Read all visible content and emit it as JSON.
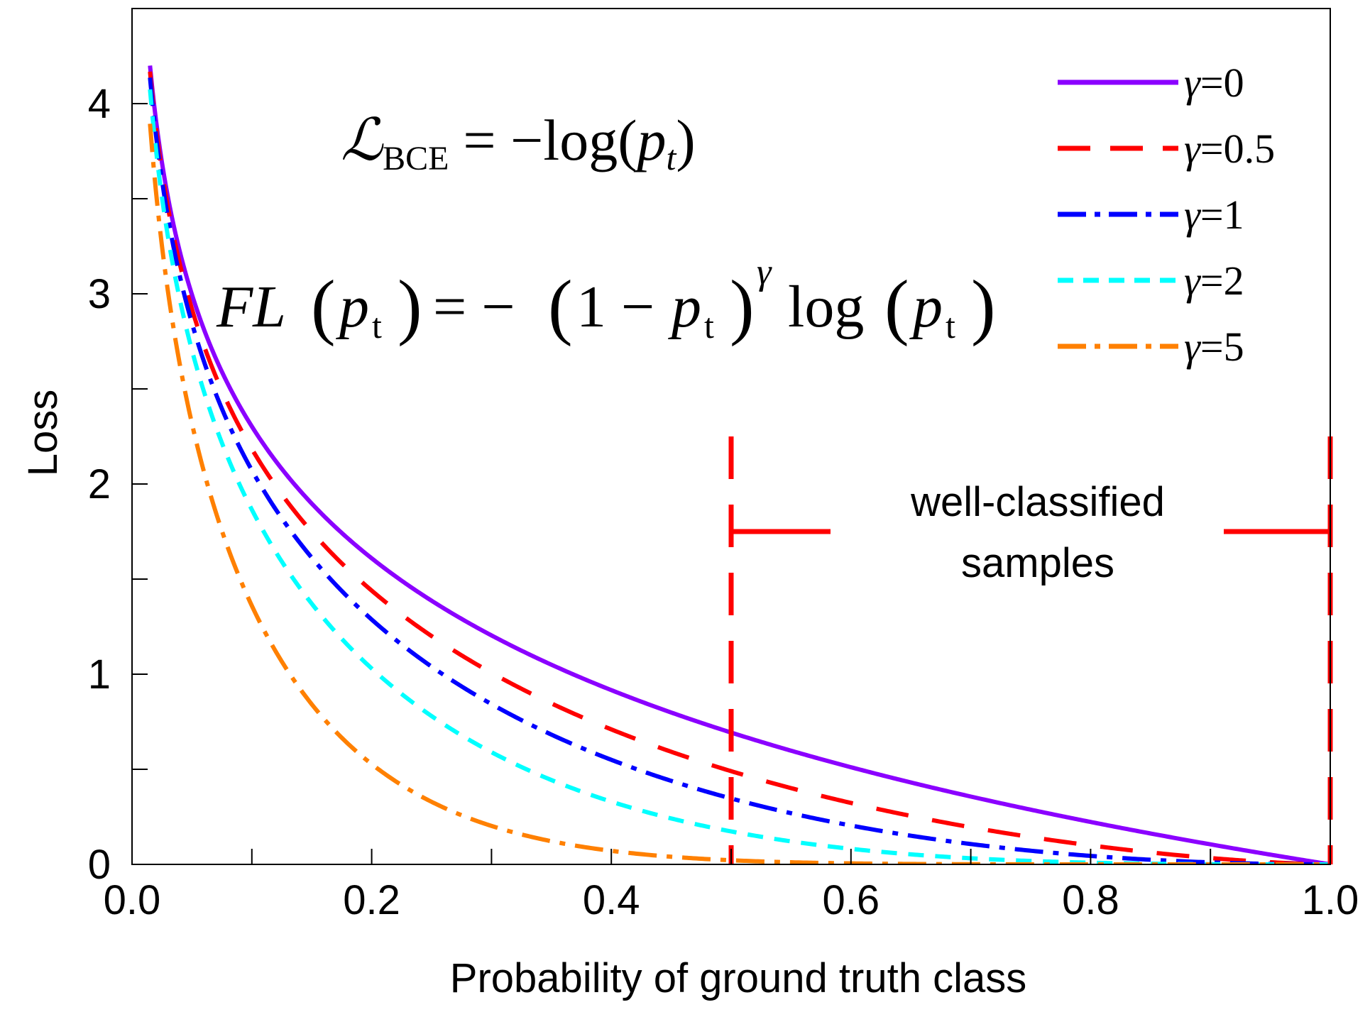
{
  "chart_data": {
    "type": "line",
    "xlabel": "Probability of ground truth class",
    "ylabel": "Loss",
    "xlim": [
      0.0,
      1.0
    ],
    "ylim": [
      0,
      4.5
    ],
    "x_ticks": [
      0.0,
      0.2,
      0.4,
      0.6,
      0.8,
      1.0
    ],
    "x_tick_labels": [
      "0.0",
      "0.2",
      "0.4",
      "0.6",
      "0.8",
      "1.0"
    ],
    "x_minor_ticks": [
      0.1,
      0.3,
      0.5,
      0.7,
      0.9
    ],
    "y_ticks": [
      0,
      1,
      2,
      3,
      4
    ],
    "y_tick_labels": [
      "0",
      "1",
      "2",
      "3",
      "4"
    ],
    "y_minor_ticks": [
      0.5,
      1.5,
      2.5,
      3.5
    ],
    "grid": false,
    "legend_position": "top-right",
    "x_start": 0.015,
    "series": [
      {
        "name": "γ=0",
        "gamma": 0,
        "color": "#8B00FF",
        "dash": "solid",
        "label_prefix": "γ",
        "label_value": "=0"
      },
      {
        "name": "γ=0.5",
        "gamma": 0.5,
        "color": "#FF0000",
        "dash": "dash",
        "label_prefix": "γ",
        "label_value": "=0.5"
      },
      {
        "name": "γ=1",
        "gamma": 1,
        "color": "#0000FF",
        "dash": "dashdot",
        "label_prefix": "γ",
        "label_value": "=1"
      },
      {
        "name": "γ=2",
        "gamma": 2,
        "color": "#00FFFF",
        "dash": "shortdash",
        "label_prefix": "γ",
        "label_value": "=2"
      },
      {
        "name": "γ=5",
        "gamma": 5,
        "color": "#FF8000",
        "dash": "dashdot",
        "label_prefix": "γ",
        "label_value": "=5"
      }
    ],
    "annotations": {
      "bce_formula": {
        "script_l": "ℒ",
        "subscript": "BCE",
        "equals_minus": "= −log(",
        "p": "p",
        "t": "t",
        "close": ")"
      },
      "fl_formula": {
        "fl": "FL",
        "p": "p",
        "t": "t",
        "equals_minus": "= −",
        "one_minus": "1 −",
        "gamma": "γ",
        "log": "log"
      },
      "region": {
        "x_range": [
          0.5,
          1.0
        ],
        "y_top": 2.25,
        "label_y": 1.75,
        "line1": "well-classified",
        "line2": "samples",
        "color": "#FF0000"
      }
    }
  }
}
